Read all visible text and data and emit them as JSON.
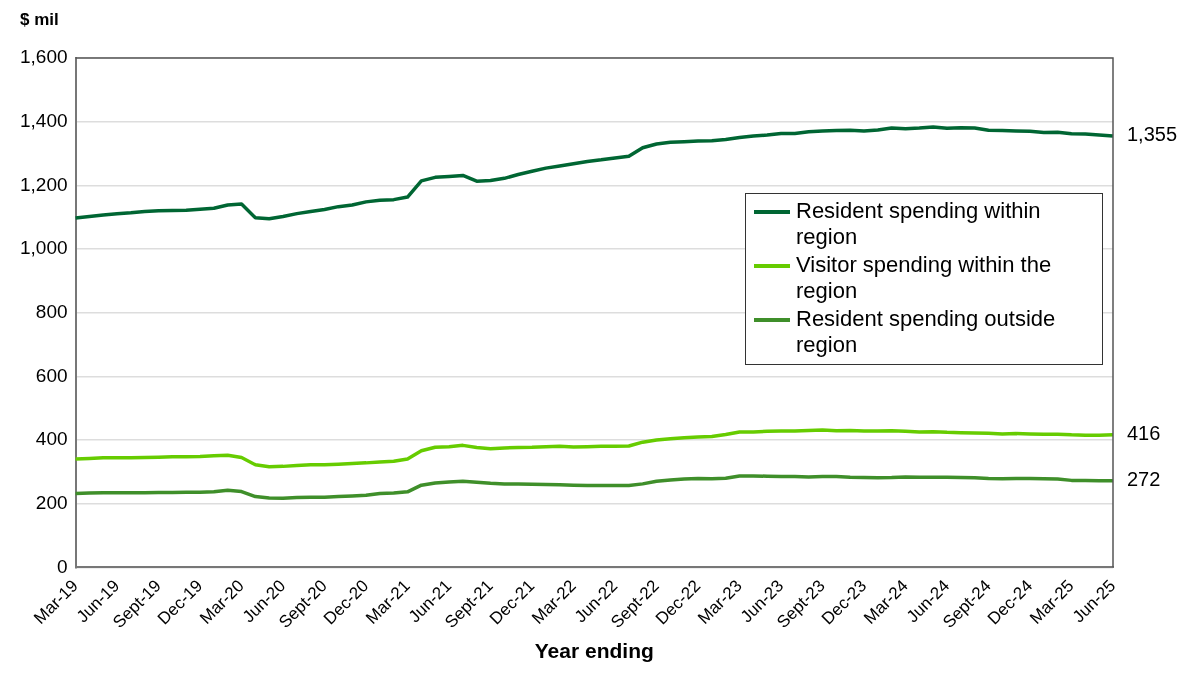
{
  "chart_data": {
    "type": "line",
    "ylabel": "$ mil",
    "xlabel": "Year ending",
    "categories": [
      "Mar-19",
      null,
      null,
      "Jun-19",
      null,
      null,
      "Sept-19",
      null,
      null,
      "Dec-19",
      null,
      null,
      "Mar-20",
      null,
      null,
      "Jun-20",
      null,
      null,
      "Sept-20",
      null,
      null,
      "Dec-20",
      null,
      null,
      "Mar-21",
      null,
      null,
      "Jun-21",
      null,
      null,
      "Sept-21",
      null,
      null,
      "Dec-21",
      null,
      null,
      "Mar-22",
      null,
      null,
      "Jun-22",
      null,
      null,
      "Sept-22",
      null,
      null,
      "Dec-22",
      null,
      null,
      "Mar-23",
      null,
      null,
      "Jun-23",
      null,
      null,
      "Sept-23",
      null,
      null,
      "Dec-23",
      null,
      null,
      "Mar-24",
      null,
      null,
      "Jun-24",
      null,
      null,
      "Sept-24",
      null,
      null,
      "Dec-24",
      null,
      null,
      "Mar-25",
      null,
      null,
      "Jun-25"
    ],
    "series": [
      {
        "name": "Resident spending within region",
        "color": "#006633",
        "values": [
          1097,
          1102,
          1107,
          1111,
          1114,
          1118,
          1120,
          1121,
          1122,
          1125,
          1128,
          1138,
          1141,
          1098,
          1095,
          1102,
          1111,
          1118,
          1124,
          1133,
          1138,
          1148,
          1153,
          1155,
          1163,
          1214,
          1225,
          1228,
          1231,
          1213,
          1215,
          1222,
          1234,
          1244,
          1254,
          1261,
          1268,
          1275,
          1280,
          1286,
          1291,
          1318,
          1330,
          1335,
          1337,
          1339,
          1340,
          1344,
          1350,
          1355,
          1358,
          1363,
          1363,
          1368,
          1371,
          1372,
          1373,
          1371,
          1374,
          1380,
          1378,
          1380,
          1383,
          1379,
          1381,
          1380,
          1373,
          1372,
          1371,
          1370,
          1366,
          1367,
          1362,
          1361,
          1358,
          1355
        ],
        "value_labels": [
          null,
          null,
          null,
          null,
          null,
          null,
          null,
          null,
          null,
          null,
          null,
          null,
          null,
          null,
          null,
          null,
          null,
          null,
          null,
          null,
          null,
          null,
          null,
          null,
          null,
          null,
          null,
          null,
          null,
          null,
          null,
          null,
          null,
          null,
          null,
          null,
          null,
          null,
          null,
          null,
          null,
          null,
          null,
          null,
          null,
          null,
          null,
          null,
          null,
          null,
          null,
          null,
          null,
          null,
          null,
          null,
          null,
          null,
          null,
          null,
          null,
          null,
          null,
          null,
          null,
          null,
          null,
          null,
          null,
          null,
          null,
          null,
          null,
          null,
          null,
          "1,355"
        ]
      },
      {
        "name": "Visitor spending within the region",
        "color": "#66cc00",
        "values": [
          340,
          342,
          344,
          344,
          344,
          345,
          346,
          347,
          347,
          348,
          350,
          352,
          345,
          322,
          316,
          317,
          320,
          322,
          322,
          324,
          326,
          328,
          331,
          333,
          340,
          366,
          377,
          379,
          383,
          376,
          372,
          375,
          376,
          377,
          379,
          380,
          378,
          379,
          380,
          380,
          381,
          393,
          400,
          404,
          407,
          409,
          411,
          417,
          425,
          425,
          427,
          428,
          428,
          430,
          431,
          429,
          430,
          428,
          428,
          429,
          427,
          425,
          426,
          424,
          423,
          422,
          421,
          419,
          420,
          419,
          418,
          418,
          416,
          415,
          415,
          416
        ],
        "value_labels": [
          null,
          null,
          null,
          null,
          null,
          null,
          null,
          null,
          null,
          null,
          null,
          null,
          null,
          null,
          null,
          null,
          null,
          null,
          null,
          null,
          null,
          null,
          null,
          null,
          null,
          null,
          null,
          null,
          null,
          null,
          null,
          null,
          null,
          null,
          null,
          null,
          null,
          null,
          null,
          null,
          null,
          null,
          null,
          null,
          null,
          null,
          null,
          null,
          null,
          null,
          null,
          null,
          null,
          null,
          null,
          null,
          null,
          null,
          null,
          null,
          null,
          null,
          null,
          null,
          null,
          null,
          null,
          null,
          null,
          null,
          null,
          null,
          null,
          null,
          null,
          "416"
        ]
      },
      {
        "name": "Resident spending outside region",
        "color": "#3f8f2a",
        "values": [
          232,
          233,
          234,
          234,
          234,
          234,
          235,
          235,
          236,
          236,
          237,
          242,
          238,
          222,
          218,
          217,
          219,
          220,
          220,
          222,
          224,
          226,
          232,
          233,
          237,
          258,
          265,
          268,
          270,
          267,
          264,
          262,
          262,
          261,
          260,
          259,
          258,
          257,
          257,
          257,
          257,
          262,
          270,
          274,
          277,
          279,
          278,
          280,
          287,
          287,
          286,
          285,
          285,
          284,
          285,
          285,
          283,
          282,
          281,
          282,
          284,
          283,
          283,
          283,
          282,
          281,
          279,
          278,
          279,
          279,
          278,
          277,
          273,
          273,
          272,
          272
        ],
        "value_labels": [
          null,
          null,
          null,
          null,
          null,
          null,
          null,
          null,
          null,
          null,
          null,
          null,
          null,
          null,
          null,
          null,
          null,
          null,
          null,
          null,
          null,
          null,
          null,
          null,
          null,
          null,
          null,
          null,
          null,
          null,
          null,
          null,
          null,
          null,
          null,
          null,
          null,
          null,
          null,
          null,
          null,
          null,
          null,
          null,
          null,
          null,
          null,
          null,
          null,
          null,
          null,
          null,
          null,
          null,
          null,
          null,
          null,
          null,
          null,
          null,
          null,
          null,
          null,
          null,
          null,
          null,
          null,
          null,
          null,
          null,
          null,
          null,
          null,
          null,
          null,
          "272"
        ]
      }
    ],
    "ylim": [
      0,
      1600
    ],
    "yticks": [
      0,
      200,
      400,
      600,
      800,
      {
        "value": 1000,
        "label": "1,000"
      },
      {
        "value": 1200,
        "label": "1,200"
      },
      {
        "value": 1400,
        "label": "1,400"
      },
      {
        "value": 1600,
        "label": "1,600"
      }
    ],
    "grid": "y",
    "legend": "right",
    "marker": "none",
    "line_style": "solid"
  }
}
